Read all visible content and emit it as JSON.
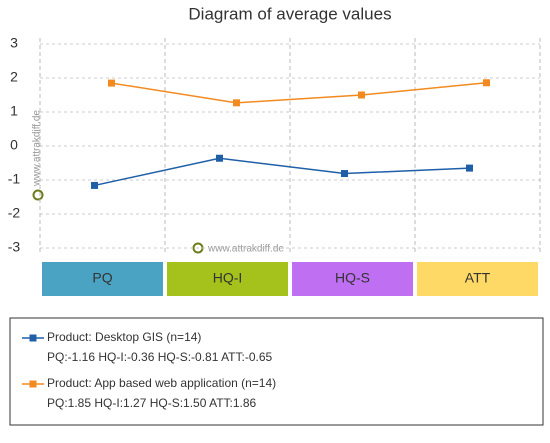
{
  "chart_data": {
    "type": "line",
    "title": "Diagram of average values",
    "categories": [
      "PQ",
      "HQ-I",
      "HQ-S",
      "ATT"
    ],
    "category_colors": [
      "#4ba3c3",
      "#a5c11b",
      "#bf6ff2",
      "#ffd966"
    ],
    "series": [
      {
        "name": "Product: Desktop GIS (n=14)",
        "summary": "PQ:-1.16 HQ-I:-0.36 HQ-S:-0.81 ATT:-0.65",
        "color": "#1f5fa8",
        "values": [
          -1.16,
          -0.36,
          -0.81,
          -0.65
        ]
      },
      {
        "name": "Product: App based web application (n=14)",
        "summary": "PQ:1.85 HQ-I:1.27 HQ-S:1.50 ATT:1.86",
        "color": "#f28a1f",
        "values": [
          1.85,
          1.27,
          1.5,
          1.86
        ]
      }
    ],
    "ylim": [
      -3,
      3
    ],
    "yticks": [
      3,
      2,
      1,
      0,
      -1,
      -2,
      -3
    ],
    "grid": true,
    "watermarks": [
      "www.attrakdiff.de",
      "www.attrakdiff.de"
    ]
  }
}
